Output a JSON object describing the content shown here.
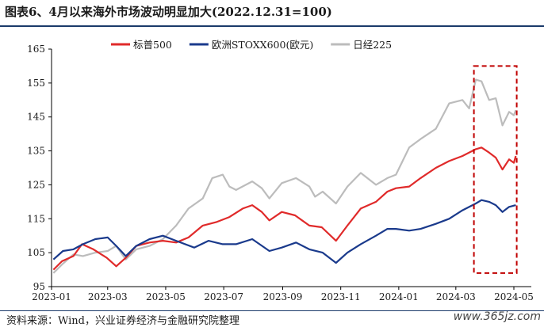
{
  "header": {
    "title": "图表6、4月以来海外市场波动明显加大(2022.12.31=100)"
  },
  "footer": {
    "source": "资料来源：Wind，兴业证券经济与金融研究院整理",
    "watermark": "www.365jz.com"
  },
  "chart_data": {
    "type": "line",
    "title": "图表6、4月以来海外市场波动明显加大(2022.12.31=100)",
    "xlabel": "",
    "ylabel": "",
    "ylim": [
      95,
      165
    ],
    "yticks": [
      95,
      105,
      115,
      125,
      135,
      145,
      155,
      165
    ],
    "x_range": [
      "2023-01-01",
      "2024-05-01"
    ],
    "xticks": [
      "2023-01",
      "2023-03",
      "2023-05",
      "2023-07",
      "2023-09",
      "2023-11",
      "2024-01",
      "2024-03",
      "2024-05"
    ],
    "grid": false,
    "legend_position": "top",
    "highlight_box": {
      "x_from": "2024-03-20",
      "x_to": "2024-05-04",
      "y_from": 99,
      "y_to": 160,
      "style": "dashed",
      "color": "#c00000"
    },
    "series": [
      {
        "name": "标普500",
        "color": "#e02a2a",
        "points": [
          [
            "2023-01-03",
            100
          ],
          [
            "2023-01-12",
            102.5
          ],
          [
            "2023-01-24",
            104
          ],
          [
            "2023-02-02",
            107.5
          ],
          [
            "2023-02-14",
            106
          ],
          [
            "2023-02-28",
            103.5
          ],
          [
            "2023-03-10",
            101
          ],
          [
            "2023-03-20",
            103.5
          ],
          [
            "2023-03-31",
            107
          ],
          [
            "2023-04-14",
            108
          ],
          [
            "2023-04-28",
            108.5
          ],
          [
            "2023-05-12",
            108
          ],
          [
            "2023-05-25",
            109.5
          ],
          [
            "2023-06-09",
            113
          ],
          [
            "2023-06-23",
            114
          ],
          [
            "2023-07-07",
            115.5
          ],
          [
            "2023-07-21",
            118
          ],
          [
            "2023-07-31",
            119
          ],
          [
            "2023-08-10",
            117
          ],
          [
            "2023-08-18",
            114.5
          ],
          [
            "2023-08-31",
            117
          ],
          [
            "2023-09-14",
            116
          ],
          [
            "2023-09-29",
            113
          ],
          [
            "2023-10-12",
            112.5
          ],
          [
            "2023-10-27",
            108.5
          ],
          [
            "2023-11-08",
            113
          ],
          [
            "2023-11-22",
            118
          ],
          [
            "2023-12-08",
            120
          ],
          [
            "2023-12-20",
            123
          ],
          [
            "2023-12-29",
            124
          ],
          [
            "2024-01-12",
            124.5
          ],
          [
            "2024-01-24",
            127
          ],
          [
            "2024-02-09",
            130
          ],
          [
            "2024-02-23",
            132
          ],
          [
            "2024-03-08",
            133.5
          ],
          [
            "2024-03-22",
            135.5
          ],
          [
            "2024-03-28",
            136
          ],
          [
            "2024-04-05",
            134.5
          ],
          [
            "2024-04-12",
            133
          ],
          [
            "2024-04-19",
            129.5
          ],
          [
            "2024-04-26",
            132.5
          ],
          [
            "2024-05-01",
            131.5
          ],
          [
            "2024-05-03",
            133.5
          ]
        ]
      },
      {
        "name": "欧洲STOXX600(欧元)",
        "color": "#1a3a8c",
        "points": [
          [
            "2023-01-03",
            103
          ],
          [
            "2023-01-13",
            105.5
          ],
          [
            "2023-01-24",
            106
          ],
          [
            "2023-02-03",
            107.5
          ],
          [
            "2023-02-16",
            109
          ],
          [
            "2023-03-01",
            109.5
          ],
          [
            "2023-03-10",
            107
          ],
          [
            "2023-03-20",
            104
          ],
          [
            "2023-03-31",
            107
          ],
          [
            "2023-04-14",
            109
          ],
          [
            "2023-04-28",
            110
          ],
          [
            "2023-05-12",
            108.5
          ],
          [
            "2023-05-31",
            106.5
          ],
          [
            "2023-06-15",
            108.5
          ],
          [
            "2023-06-30",
            107.5
          ],
          [
            "2023-07-14",
            107.5
          ],
          [
            "2023-07-31",
            109
          ],
          [
            "2023-08-18",
            105.5
          ],
          [
            "2023-08-31",
            106.5
          ],
          [
            "2023-09-15",
            108
          ],
          [
            "2023-09-29",
            106
          ],
          [
            "2023-10-13",
            105
          ],
          [
            "2023-10-27",
            102
          ],
          [
            "2023-11-08",
            105
          ],
          [
            "2023-11-22",
            107.5
          ],
          [
            "2023-12-08",
            110
          ],
          [
            "2023-12-20",
            112
          ],
          [
            "2023-12-29",
            112
          ],
          [
            "2024-01-12",
            111.5
          ],
          [
            "2024-01-24",
            112
          ],
          [
            "2024-02-09",
            113.5
          ],
          [
            "2024-02-23",
            115
          ],
          [
            "2024-03-08",
            117.5
          ],
          [
            "2024-03-22",
            119.5
          ],
          [
            "2024-03-28",
            120.5
          ],
          [
            "2024-04-05",
            120
          ],
          [
            "2024-04-12",
            119
          ],
          [
            "2024-04-19",
            117
          ],
          [
            "2024-04-26",
            118.5
          ],
          [
            "2024-05-03",
            119
          ]
        ]
      },
      {
        "name": "日经225",
        "color": "#bcbcbc",
        "points": [
          [
            "2023-01-03",
            99
          ],
          [
            "2023-01-12",
            101.5
          ],
          [
            "2023-01-24",
            104.5
          ],
          [
            "2023-02-03",
            104
          ],
          [
            "2023-02-16",
            105
          ],
          [
            "2023-03-01",
            105.5
          ],
          [
            "2023-03-10",
            107
          ],
          [
            "2023-03-20",
            103
          ],
          [
            "2023-03-31",
            106
          ],
          [
            "2023-04-14",
            107
          ],
          [
            "2023-04-28",
            109
          ],
          [
            "2023-05-12",
            113
          ],
          [
            "2023-05-25",
            118
          ],
          [
            "2023-06-09",
            121
          ],
          [
            "2023-06-19",
            127
          ],
          [
            "2023-06-30",
            128
          ],
          [
            "2023-07-07",
            124.5
          ],
          [
            "2023-07-14",
            123.5
          ],
          [
            "2023-07-31",
            126
          ],
          [
            "2023-08-10",
            124
          ],
          [
            "2023-08-18",
            121
          ],
          [
            "2023-08-31",
            125.5
          ],
          [
            "2023-09-15",
            127
          ],
          [
            "2023-09-29",
            124.5
          ],
          [
            "2023-10-05",
            121.5
          ],
          [
            "2023-10-13",
            123
          ],
          [
            "2023-10-27",
            119.5
          ],
          [
            "2023-11-08",
            124.5
          ],
          [
            "2023-11-22",
            128.5
          ],
          [
            "2023-12-08",
            125
          ],
          [
            "2023-12-20",
            127
          ],
          [
            "2023-12-29",
            128
          ],
          [
            "2024-01-12",
            136
          ],
          [
            "2024-01-24",
            138.5
          ],
          [
            "2024-02-09",
            141.5
          ],
          [
            "2024-02-23",
            149
          ],
          [
            "2024-03-08",
            150
          ],
          [
            "2024-03-15",
            147.5
          ],
          [
            "2024-03-22",
            156
          ],
          [
            "2024-03-28",
            155.5
          ],
          [
            "2024-04-05",
            150
          ],
          [
            "2024-04-12",
            150.5
          ],
          [
            "2024-04-19",
            142.5
          ],
          [
            "2024-04-26",
            146.5
          ],
          [
            "2024-05-01",
            145.5
          ],
          [
            "2024-05-03",
            147
          ]
        ]
      }
    ]
  }
}
